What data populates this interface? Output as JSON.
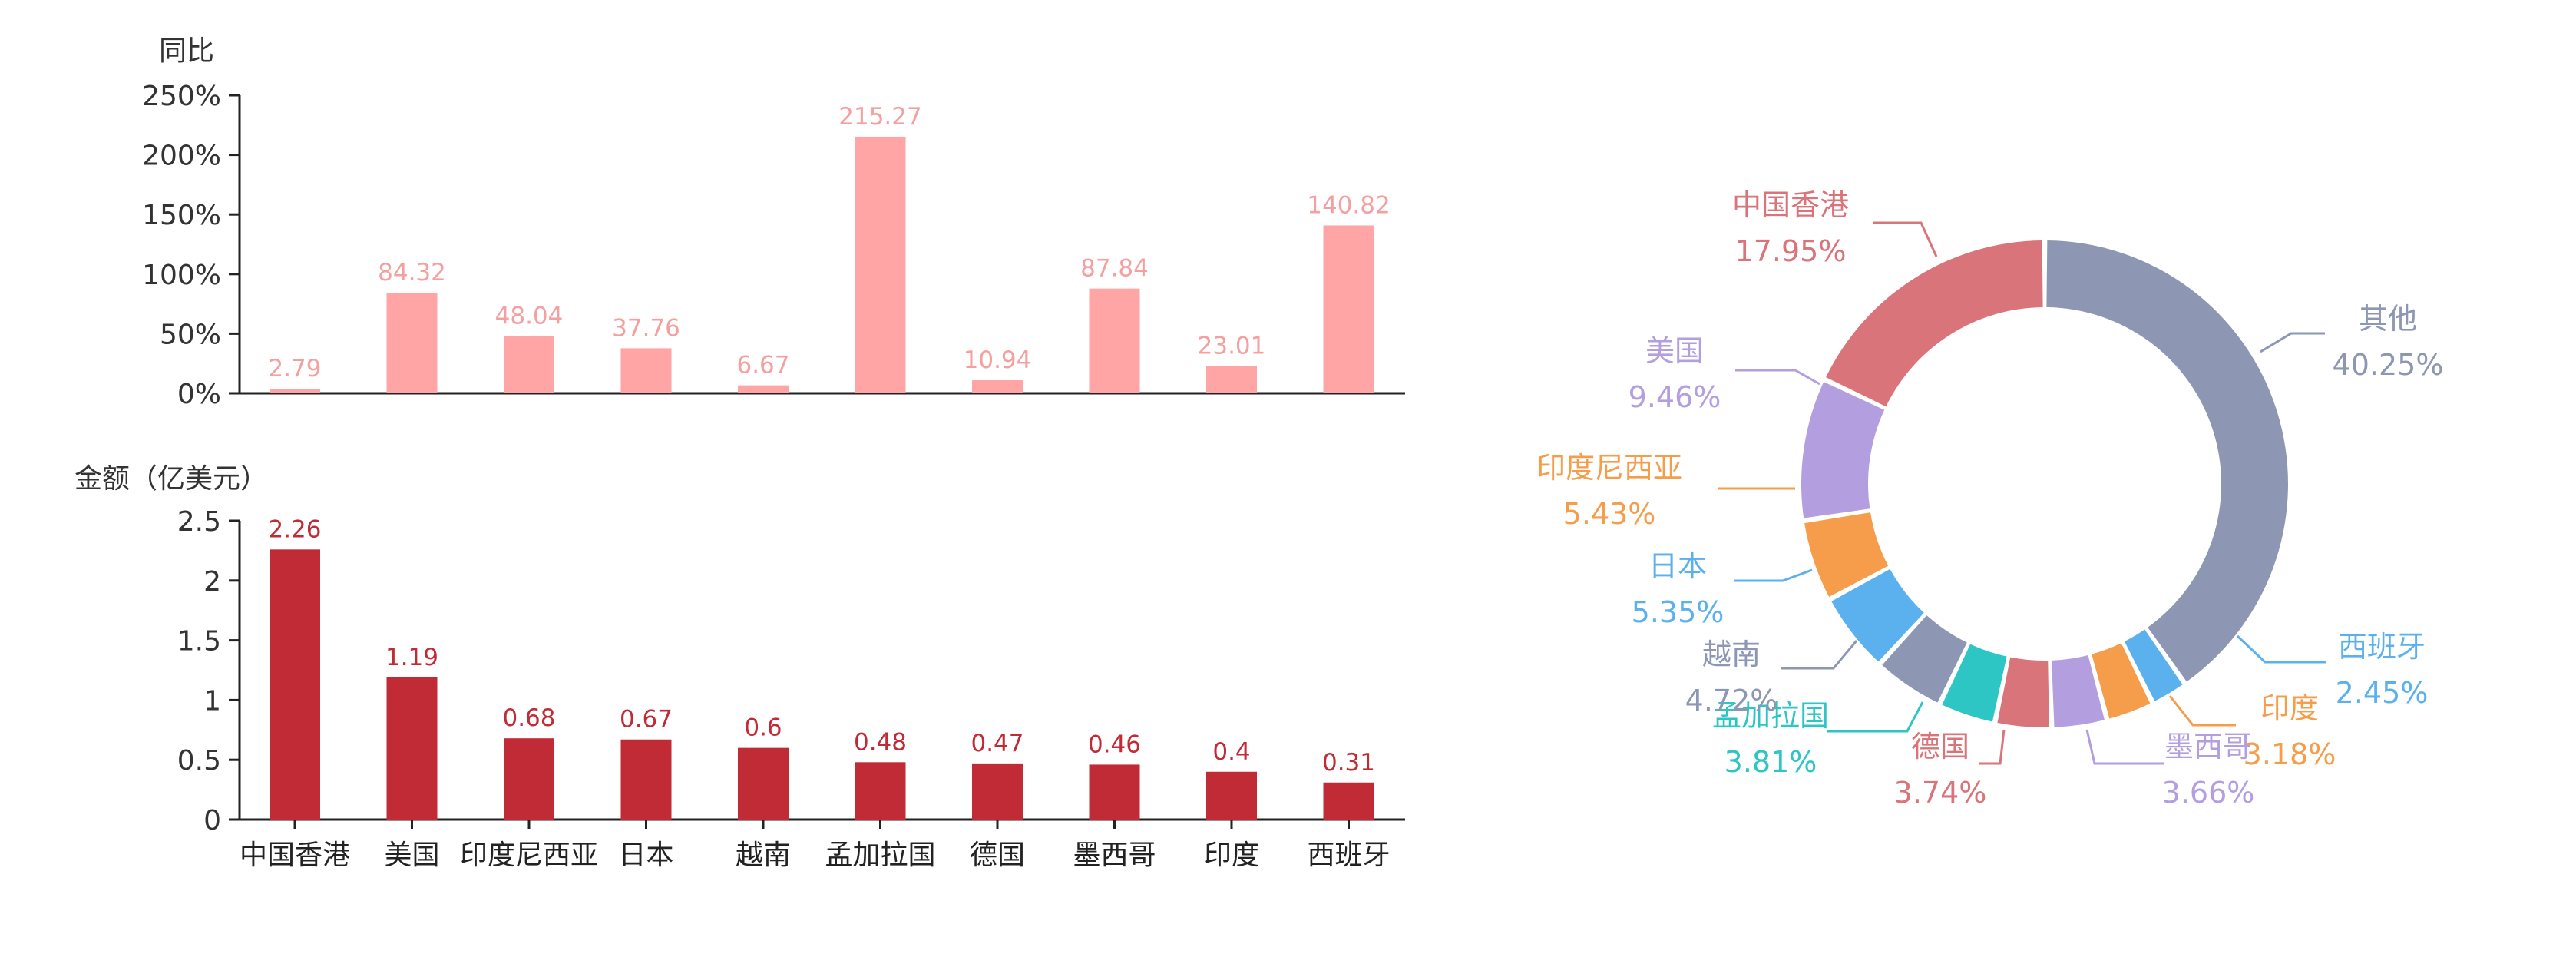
{
  "chart_data": [
    {
      "type": "bar",
      "ylabel": "同比",
      "ylim": [
        0,
        250
      ],
      "yticks": [
        0,
        50,
        100,
        150,
        200,
        250
      ],
      "ytick_labels": [
        "0%",
        "50%",
        "100%",
        "150%",
        "200%",
        "250%"
      ],
      "categories": [
        "中国香港",
        "美国",
        "印度尼西亚",
        "日本",
        "越南",
        "孟加拉国",
        "德国",
        "墨西哥",
        "印度",
        "西班牙"
      ],
      "values": [
        2.79,
        84.32,
        48.04,
        37.76,
        6.67,
        215.27,
        10.94,
        87.84,
        23.01,
        140.82
      ],
      "value_labels": [
        "2.79",
        "84.32",
        "48.04",
        "37.76",
        "6.67",
        "215.27",
        "10.94",
        "87.84",
        "23.01",
        "140.82"
      ],
      "color": "#ffa5a6",
      "label_color": "#f5a0a0",
      "grid": false
    },
    {
      "type": "bar",
      "ylabel": "金额（亿美元）",
      "ylim": [
        0,
        2.5
      ],
      "yticks": [
        0,
        0.5,
        1,
        1.5,
        2,
        2.5
      ],
      "ytick_labels": [
        "0",
        "0.5",
        "1",
        "1.5",
        "2",
        "2.5"
      ],
      "categories": [
        "中国香港",
        "美国",
        "印度尼西亚",
        "日本",
        "越南",
        "孟加拉国",
        "德国",
        "墨西哥",
        "印度",
        "西班牙"
      ],
      "values": [
        2.26,
        1.19,
        0.68,
        0.67,
        0.6,
        0.48,
        0.47,
        0.46,
        0.4,
        0.31
      ],
      "value_labels": [
        "2.26",
        "1.19",
        "0.68",
        "0.67",
        "0.6",
        "0.48",
        "0.47",
        "0.46",
        "0.4",
        "0.31"
      ],
      "color": "#c02b35",
      "label_color": "#c02b35",
      "grid": false
    },
    {
      "type": "pie",
      "variant": "donut",
      "slices": [
        {
          "name": "其他",
          "label": "40.25%",
          "value": 40.25,
          "color": "#8d97b3"
        },
        {
          "name": "西班牙",
          "label": "2.45%",
          "value": 2.45,
          "color": "#5bb0ee"
        },
        {
          "name": "印度",
          "label": "3.18%",
          "value": 3.18,
          "color": "#f59d4a"
        },
        {
          "name": "墨西哥",
          "label": "3.66%",
          "value": 3.66,
          "color": "#b39ee0"
        },
        {
          "name": "德国",
          "label": "3.74%",
          "value": 3.74,
          "color": "#d9747a"
        },
        {
          "name": "孟加拉国",
          "label": "3.81%",
          "value": 3.81,
          "color": "#2ec5c5"
        },
        {
          "name": "越南",
          "label": "4.72%",
          "value": 4.72,
          "color": "#8d97b3"
        },
        {
          "name": "日本",
          "label": "5.35%",
          "value": 5.35,
          "color": "#5bb0ee"
        },
        {
          "name": "印度尼西亚",
          "label": "5.43%",
          "value": 5.43,
          "color": "#f59d4a"
        },
        {
          "name": "美国",
          "label": "9.46%",
          "value": 9.46,
          "color": "#b39ee0"
        },
        {
          "name": "中国香港",
          "label": "17.95%",
          "value": 17.95,
          "color": "#d9747a"
        }
      ]
    }
  ]
}
